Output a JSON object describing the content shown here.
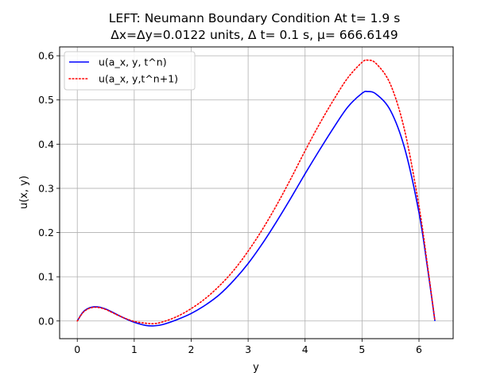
{
  "chart_data": {
    "type": "line",
    "title_line1": "LEFT: Neumann Boundary Condition At t= 1.9 s",
    "title_line2": "Δx=Δy=0.0122 units, Δ t= 0.1 s, μ= 666.6149",
    "xlabel": "y",
    "ylabel": "u(x, y)",
    "xlim": [
      -0.31,
      6.6
    ],
    "ylim": [
      -0.04,
      0.62
    ],
    "xticks": [
      0,
      1,
      2,
      3,
      4,
      5,
      6
    ],
    "xtick_labels": [
      "0",
      "1",
      "2",
      "3",
      "4",
      "5",
      "6"
    ],
    "yticks": [
      0.0,
      0.1,
      0.2,
      0.3,
      0.4,
      0.5,
      0.6
    ],
    "ytick_labels": [
      "0.0",
      "0.1",
      "0.2",
      "0.3",
      "0.4",
      "0.5",
      "0.6"
    ],
    "grid": true,
    "legend_position": "upper-left",
    "series": [
      {
        "name": "u(a_x, y, t^n)",
        "color": "#0000ff",
        "style": "solid",
        "x": [
          0,
          0.1,
          0.2,
          0.3,
          0.4,
          0.5,
          0.6,
          0.8,
          1.0,
          1.2,
          1.35,
          1.5,
          1.75,
          2.0,
          2.25,
          2.5,
          2.75,
          3.0,
          3.25,
          3.5,
          3.75,
          4.0,
          4.25,
          4.5,
          4.75,
          5.0,
          5.1,
          5.25,
          5.5,
          5.75,
          6.0,
          6.15,
          6.28
        ],
        "y": [
          0.0,
          0.02,
          0.029,
          0.032,
          0.031,
          0.027,
          0.021,
          0.008,
          -0.003,
          -0.01,
          -0.011,
          -0.008,
          0.003,
          0.017,
          0.036,
          0.06,
          0.092,
          0.13,
          0.175,
          0.225,
          0.278,
          0.333,
          0.386,
          0.437,
          0.484,
          0.515,
          0.519,
          0.513,
          0.476,
          0.39,
          0.245,
          0.12,
          0.0
        ]
      },
      {
        "name": "u(a_x, y,t^n+1)",
        "color": "#ff0000",
        "style": "dotted",
        "x": [
          0,
          0.1,
          0.2,
          0.3,
          0.4,
          0.5,
          0.6,
          0.8,
          1.0,
          1.2,
          1.35,
          1.5,
          1.75,
          2.0,
          2.25,
          2.5,
          2.75,
          3.0,
          3.25,
          3.5,
          3.75,
          4.0,
          4.25,
          4.5,
          4.75,
          5.0,
          5.1,
          5.25,
          5.5,
          5.75,
          6.0,
          6.15,
          6.28
        ],
        "y": [
          0.0,
          0.019,
          0.028,
          0.031,
          0.03,
          0.026,
          0.02,
          0.008,
          -0.001,
          -0.005,
          -0.006,
          -0.002,
          0.01,
          0.028,
          0.051,
          0.08,
          0.115,
          0.158,
          0.207,
          0.262,
          0.322,
          0.385,
          0.445,
          0.5,
          0.55,
          0.585,
          0.59,
          0.582,
          0.535,
          0.43,
          0.26,
          0.125,
          0.0
        ]
      }
    ]
  }
}
